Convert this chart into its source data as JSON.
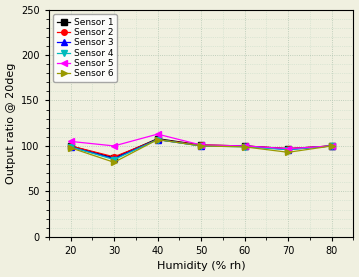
{
  "x": [
    20,
    30,
    40,
    50,
    60,
    70,
    80
  ],
  "sensors": {
    "Sensor 1": {
      "color": "#000000",
      "marker": "s",
      "values": [
        100,
        87,
        108,
        101,
        100,
        97,
        100
      ]
    },
    "Sensor 2": {
      "color": "#ff0000",
      "marker": "o",
      "values": [
        100,
        88,
        107,
        101,
        100,
        97,
        100
      ]
    },
    "Sensor 3": {
      "color": "#0000ff",
      "marker": "^",
      "values": [
        99,
        86,
        107,
        100,
        100,
        96,
        100
      ]
    },
    "Sensor 4": {
      "color": "#00bbbb",
      "marker": "v",
      "values": [
        99,
        85,
        107,
        100,
        99,
        96,
        100
      ]
    },
    "Sensor 5": {
      "color": "#ff00ff",
      "marker": "<",
      "values": [
        105,
        100,
        113,
        101,
        100,
        97,
        100
      ]
    },
    "Sensor 6": {
      "color": "#999900",
      "marker": ">",
      "values": [
        98,
        82,
        107,
        100,
        99,
        93,
        100
      ]
    }
  },
  "xlabel": "Humidity (% rh)",
  "ylabel": "Output ratio @ 20deg",
  "xlim": [
    15,
    85
  ],
  "ylim": [
    0,
    250
  ],
  "xticks": [
    20,
    30,
    40,
    50,
    60,
    70,
    80
  ],
  "yticks": [
    0,
    50,
    100,
    150,
    200,
    250
  ],
  "grid_major_color": "#b0c4b0",
  "grid_minor_color": "#c8dcc8",
  "bg_color": "#f0f0e0",
  "legend_fontsize": 6.5,
  "axis_fontsize": 8,
  "tick_fontsize": 7,
  "marker_size": 4,
  "line_width": 0.9
}
